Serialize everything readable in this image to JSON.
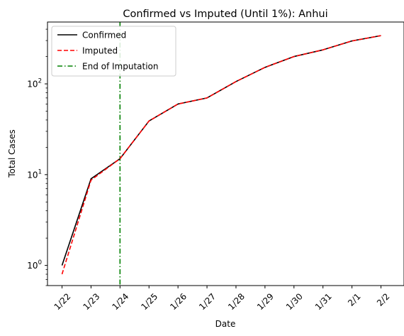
{
  "chart_data": {
    "type": "line",
    "title": "Confirmed vs Imputed (Until 1%): Anhui",
    "xlabel": "Date",
    "ylabel": "Total Cases",
    "categories": [
      "1/22",
      "1/23",
      "1/24",
      "1/25",
      "1/26",
      "1/27",
      "1/28",
      "1/29",
      "1/30",
      "1/31",
      "2/1",
      "2/2"
    ],
    "yscale": "log",
    "ylim": [
      0.6,
      480
    ],
    "yticks": [
      {
        "value": 1,
        "base": "10",
        "exp": "0"
      },
      {
        "value": 10,
        "base": "10",
        "exp": "1"
      },
      {
        "value": 100,
        "base": "10",
        "exp": "2"
      }
    ],
    "grid": false,
    "legend_position": "top-left",
    "series": [
      {
        "name": "Confirmed",
        "color": "#000000",
        "style": "solid",
        "values": [
          1,
          9,
          15,
          39,
          60,
          70,
          106,
          152,
          200,
          237,
          297,
          340
        ]
      },
      {
        "name": "Imputed",
        "color": "#ff0000",
        "style": "dashed",
        "values": [
          0.8,
          8.7,
          15,
          39,
          60,
          70,
          106,
          152,
          200,
          237,
          297,
          340
        ]
      }
    ],
    "vline": {
      "name": "End of Imputation",
      "color": "#008000",
      "style": "dashdot",
      "category": "1/24"
    }
  }
}
